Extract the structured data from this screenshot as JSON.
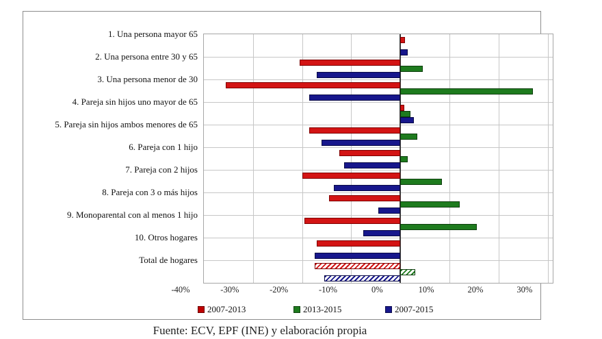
{
  "caption": "Fuente: ECV, EPF (INE) y elaboración propia",
  "colors": {
    "bar_red": "#d31414",
    "bar_red_border": "#7f0000",
    "bar_green": "#1e7b1e",
    "bar_green_border": "#0e3e0e",
    "bar_navy": "#17178c",
    "bar_navy_border": "#0a0a46",
    "gridline": "#c6c6c6",
    "plot_border": "#a6a6a6",
    "outer_border": "#8c8c8c",
    "zero_axis": "#3a3a3a"
  },
  "chart_data": {
    "type": "bar",
    "orientation": "horizontal",
    "title": "",
    "xlabel": "",
    "ylabel": "",
    "grid": true,
    "legend_position": "bottom",
    "xlim": [
      -40,
      31
    ],
    "x_tick_values": [
      -40,
      -30,
      -20,
      -10,
      0,
      10,
      20,
      30
    ],
    "x_ticks": [
      "-40%",
      "-30%",
      "-20%",
      "-10%",
      "0%",
      "10%",
      "20%",
      "30%"
    ],
    "categories": [
      "1. Una persona mayor 65",
      "2. Una persona entre 30 y 65",
      "3. Una persona menor de 30",
      "4. Pareja sin hijos uno mayor de 65",
      "5. Pareja sin hijos ambos menores de 65",
      "6. Pareja con 1 hijo",
      "7. Pareja con 2 hijos",
      "8. Pareja con 3 o más hijos",
      "9. Monoparental con al menos 1 hijo",
      "10. Otros hogares",
      "Total de hogares"
    ],
    "hatched_category_index": 10,
    "series": [
      {
        "name": "2007-2013",
        "color": "#d31414",
        "border": "#7f0000",
        "legend_color": "#c00000",
        "values": [
          1,
          -20.5,
          -35.5,
          0.8,
          -18.5,
          -12.5,
          -20,
          -14.5,
          -19.5,
          -17,
          -17.5
        ]
      },
      {
        "name": "2013-2015",
        "color": "#1e7b1e",
        "border": "#0e3e0e",
        "legend_color": "#1e7b1e",
        "values": [
          0,
          4.5,
          27,
          2,
          3.5,
          1.5,
          8.5,
          12,
          15.5,
          0,
          3
        ]
      },
      {
        "name": "2007-2015",
        "color": "#17178c",
        "border": "#0a0a46",
        "legend_color": "#17178c",
        "values": [
          1.5,
          -17,
          -18.5,
          2.7,
          -16,
          -11.5,
          -13.5,
          -4.5,
          -7.5,
          -17.5,
          -15.5
        ]
      }
    ]
  }
}
